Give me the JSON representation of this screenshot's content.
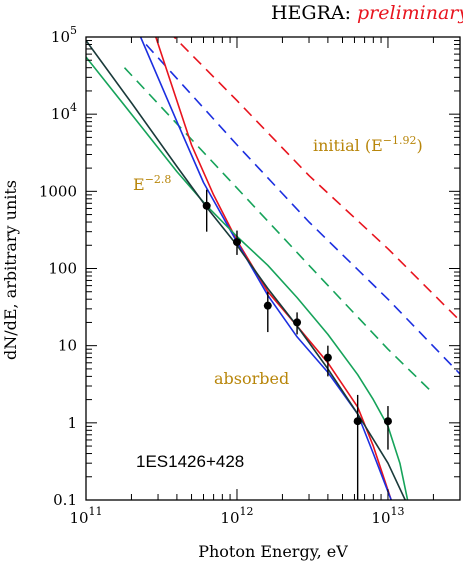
{
  "header": {
    "label": "HEGRA:",
    "status": "preliminary",
    "status_color": "#e8141e"
  },
  "chart_data": {
    "type": "line",
    "title": "",
    "xlabel": "Photon Energy, eV",
    "ylabel": "dN/dE,  arbitrary  units",
    "xscale": "log",
    "yscale": "log",
    "xlim": [
      100000000000.0,
      30000000000000.0
    ],
    "ylim": [
      0.1,
      100000
    ],
    "x_ticks": [
      {
        "value": 100000000000.0,
        "mantissa": "10",
        "exp": "11"
      },
      {
        "value": 1000000000000.0,
        "mantissa": "10",
        "exp": "12"
      },
      {
        "value": 10000000000000.0,
        "mantissa": "10",
        "exp": "13"
      }
    ],
    "y_ticks": [
      {
        "value": 0.1,
        "label": "0.1"
      },
      {
        "value": 1,
        "label": "1"
      },
      {
        "value": 10,
        "label": "10"
      },
      {
        "value": 100,
        "label": "100"
      },
      {
        "value": 1000,
        "label": "1000"
      },
      {
        "value": 10000,
        "mantissa": "10",
        "exp": "4"
      },
      {
        "value": 100000,
        "mantissa": "10",
        "exp": "5"
      }
    ],
    "annotations": {
      "source": "1ES1426+428",
      "absorbed": "absorbed",
      "e28_base": "E",
      "e28_exp": "−2.8",
      "initial_base": "initial (E",
      "initial_exp": "−1.92",
      "initial_close": ")",
      "annotation_color": "#b8860b"
    },
    "data_points": [
      {
        "x": 630000000000.0,
        "y": 650,
        "ylo": 300,
        "yhi": 1050
      },
      {
        "x": 1000000000000.0,
        "y": 220,
        "ylo": 150,
        "yhi": 310
      },
      {
        "x": 1600000000000.0,
        "y": 33,
        "ylo": 15,
        "yhi": 50
      },
      {
        "x": 2500000000000.0,
        "y": 20,
        "ylo": 14,
        "yhi": 27
      },
      {
        "x": 4000000000000.0,
        "y": 7,
        "ylo": 4,
        "yhi": 10
      },
      {
        "x": 6300000000000.0,
        "y": 1.05,
        "ylo": 0.1,
        "yhi": 2.3
      },
      {
        "x": 10000000000000.0,
        "y": 1.05,
        "ylo": 0.45,
        "yhi": 1.65
      }
    ],
    "series": [
      {
        "color": "#e8141e",
        "dashed": true,
        "x": [
          350000000000.0,
          1000000000000.0,
          3000000000000.0,
          10000000000000.0,
          30000000000000.0
        ],
        "y": [
          120000,
          15000,
          1600,
          180,
          21
        ]
      },
      {
        "color": "#1c2fe0",
        "dashed": true,
        "x": [
          250000000000.0,
          1000000000000.0,
          3000000000000.0,
          10000000000000.0,
          30000000000000.0
        ],
        "y": [
          80000,
          4000,
          400,
          40,
          4.3
        ]
      },
      {
        "color": "#16a35a",
        "dashed": true,
        "x": [
          180000000000.0,
          1000000000000.0,
          3000000000000.0,
          10000000000000.0,
          20000000000000.0
        ],
        "y": [
          40000,
          1100,
          110,
          9,
          2.4
        ]
      },
      {
        "color": "#e8141e",
        "dashed": false,
        "x": [
          290000000000.0,
          500000000000.0,
          700000000000.0,
          1000000000000.0,
          1600000000000.0,
          2500000000000.0,
          4000000000000.0,
          6300000000000.0,
          8000000000000.0,
          10500000000000.0
        ],
        "y": [
          100000,
          4000,
          900,
          230,
          50,
          18,
          6,
          1.6,
          0.5,
          0.1
        ]
      },
      {
        "color": "#1c2fe0",
        "dashed": false,
        "x": [
          230000000000.0,
          400000000000.0,
          600000000000.0,
          1000000000000.0,
          1600000000000.0,
          2500000000000.0,
          4000000000000.0,
          6300000000000.0,
          8000000000000.0,
          10500000000000.0
        ],
        "y": [
          100000,
          8000,
          1300,
          220,
          45,
          13,
          4.5,
          1.3,
          0.4,
          0.1
        ]
      },
      {
        "color": "#16a35a",
        "dashed": false,
        "x": [
          100000000000.0,
          200000000000.0,
          400000000000.0,
          630000000000.0,
          1000000000000.0,
          1600000000000.0,
          2500000000000.0,
          4000000000000.0,
          6300000000000.0,
          8000000000000.0,
          10000000000000.0,
          12000000000000.0,
          13500000000000.0
        ],
        "y": [
          55000,
          10000,
          1800,
          650,
          260,
          110,
          42,
          14,
          4.2,
          2,
          0.9,
          0.3,
          0.1
        ]
      },
      {
        "color": "#1a3a3a",
        "dashed": false,
        "x": [
          100000000000.0,
          200000000000.0,
          400000000000.0,
          630000000000.0,
          1000000000000.0,
          1600000000000.0,
          2500000000000.0,
          4000000000000.0,
          6300000000000.0,
          10000000000000.0,
          13000000000000.0
        ],
        "y": [
          90000,
          14000,
          2100,
          620,
          200,
          55,
          18,
          5,
          1.3,
          0.3,
          0.1
        ]
      }
    ]
  }
}
